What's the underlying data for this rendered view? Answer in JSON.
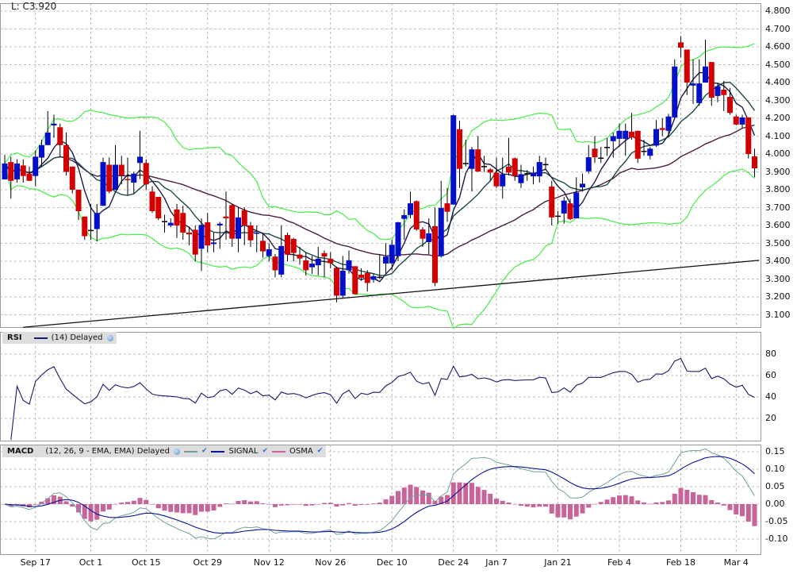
{
  "header": {
    "last_label": "L: C3.920"
  },
  "colors": {
    "up": "#0010c8",
    "down": "#d40000",
    "bands": "#44ee44",
    "ma_fast": "#1c1c48",
    "ma_mid": "#1e4a4a",
    "ma_slow": "#4a1e44",
    "rsi": "#1a1a6e",
    "macd": "#6fa0a0",
    "signal": "#0a1496",
    "osma": "#c8649a",
    "grid": "#aaaaaa"
  },
  "rsi_legend": {
    "title": "RSI",
    "params": "(14) Delayed"
  },
  "macd_legend": {
    "title": "MACD",
    "params": "(12, 26, 9 - EMA, EMA) Delayed",
    "signal": "SIGNAL",
    "osma": "OSMA"
  },
  "chart_data": {
    "type": "candlestick",
    "title": "",
    "candles": [
      [
        3.858,
        3.995,
        3.86,
        3.947
      ],
      [
        3.955,
        3.985,
        3.75,
        3.85
      ],
      [
        3.858,
        3.97,
        3.84,
        3.947
      ],
      [
        3.936,
        3.97,
        3.84,
        3.877
      ],
      [
        3.89,
        3.93,
        3.85,
        3.85
      ],
      [
        3.877,
        4.02,
        3.82,
        3.985
      ],
      [
        3.98,
        4.08,
        3.93,
        4.05
      ],
      [
        4.05,
        4.24,
        4.05,
        4.12
      ],
      [
        4.16,
        4.22,
        4.09,
        4.17
      ],
      [
        4.15,
        4.17,
        3.98,
        4.05
      ],
      [
        4.05,
        4.12,
        3.88,
        3.9
      ],
      [
        3.93,
        3.93,
        3.78,
        3.8
      ],
      [
        3.8,
        3.8,
        3.63,
        3.68
      ],
      [
        3.65,
        3.65,
        3.52,
        3.54
      ],
      [
        3.575,
        3.72,
        3.52,
        3.575
      ],
      [
        3.58,
        3.72,
        3.51,
        3.67
      ],
      [
        3.71,
        3.98,
        3.71,
        3.955
      ],
      [
        3.94,
        3.98,
        3.78,
        3.79
      ],
      [
        3.8,
        4.05,
        3.8,
        3.94
      ],
      [
        3.94,
        3.99,
        3.83,
        3.88
      ],
      [
        3.86,
        3.98,
        3.77,
        3.855
      ],
      [
        3.84,
        3.9,
        3.78,
        3.89
      ],
      [
        3.95,
        4.13,
        3.86,
        3.985
      ],
      [
        3.95,
        3.97,
        3.8,
        3.83
      ],
      [
        3.79,
        3.82,
        3.67,
        3.68
      ],
      [
        3.76,
        3.76,
        3.63,
        3.64
      ],
      [
        3.625,
        3.66,
        3.56,
        3.625
      ],
      [
        3.6,
        3.64,
        3.59,
        3.615
      ],
      [
        3.69,
        3.72,
        3.53,
        3.6
      ],
      [
        3.67,
        3.71,
        3.52,
        3.56
      ],
      [
        3.56,
        3.59,
        3.49,
        3.55
      ],
      [
        3.576,
        3.6,
        3.4,
        3.437
      ],
      [
        3.47,
        3.64,
        3.345,
        3.603
      ],
      [
        3.618,
        3.67,
        3.45,
        3.488
      ],
      [
        3.496,
        3.56,
        3.45,
        3.505
      ],
      [
        3.6,
        3.62,
        3.47,
        3.61
      ],
      [
        3.65,
        3.79,
        3.52,
        3.64
      ],
      [
        3.714,
        3.72,
        3.48,
        3.526
      ],
      [
        3.526,
        3.7,
        3.45,
        3.645
      ],
      [
        3.685,
        3.7,
        3.49,
        3.6
      ],
      [
        3.6,
        3.62,
        3.48,
        3.517
      ],
      [
        3.555,
        3.6,
        3.45,
        3.56
      ],
      [
        3.514,
        3.56,
        3.42,
        3.455
      ],
      [
        3.428,
        3.5,
        3.4,
        3.467
      ],
      [
        3.426,
        3.44,
        3.31,
        3.349
      ],
      [
        3.325,
        3.6,
        3.31,
        3.485
      ],
      [
        3.547,
        3.56,
        3.4,
        3.437
      ],
      [
        3.525,
        3.53,
        3.4,
        3.446
      ],
      [
        3.437,
        3.48,
        3.38,
        3.415
      ],
      [
        3.405,
        3.45,
        3.32,
        3.349
      ],
      [
        3.366,
        3.43,
        3.33,
        3.387
      ],
      [
        3.377,
        3.48,
        3.32,
        3.414
      ],
      [
        3.445,
        3.46,
        3.31,
        3.426
      ],
      [
        3.414,
        3.45,
        3.36,
        3.389
      ],
      [
        3.363,
        3.37,
        3.17,
        3.207
      ],
      [
        3.207,
        3.43,
        3.19,
        3.347
      ],
      [
        3.349,
        3.46,
        3.33,
        3.405
      ],
      [
        3.372,
        3.37,
        3.215,
        3.215
      ],
      [
        3.325,
        3.36,
        3.29,
        3.307
      ],
      [
        3.334,
        3.35,
        3.23,
        3.278
      ],
      [
        3.296,
        3.33,
        3.28,
        3.316
      ],
      [
        3.313,
        3.44,
        3.3,
        3.313
      ],
      [
        3.387,
        3.5,
        3.33,
        3.426
      ],
      [
        3.388,
        3.52,
        3.35,
        3.492
      ],
      [
        3.428,
        3.62,
        3.4,
        3.618
      ],
      [
        3.637,
        3.69,
        3.52,
        3.658
      ],
      [
        3.659,
        3.79,
        3.64,
        3.724
      ],
      [
        3.736,
        3.74,
        3.57,
        3.578
      ],
      [
        3.578,
        3.59,
        3.48,
        3.526
      ],
      [
        3.507,
        3.64,
        3.44,
        3.556
      ],
      [
        3.596,
        3.7,
        3.26,
        3.278
      ],
      [
        3.428,
        3.85,
        3.42,
        3.698
      ],
      [
        3.724,
        3.81,
        3.62,
        3.677
      ],
      [
        3.717,
        4.22,
        3.72,
        4.217
      ],
      [
        4.139,
        4.186,
        3.81,
        3.917
      ],
      [
        3.95,
        4.08,
        3.93,
        3.95
      ],
      [
        3.917,
        4.04,
        3.79,
        4.026
      ],
      [
        4.026,
        4.1,
        3.9,
        3.902
      ],
      [
        3.933,
        3.99,
        3.9,
        3.933
      ],
      [
        3.914,
        3.92,
        3.85,
        3.896
      ],
      [
        3.896,
        3.98,
        3.81,
        3.819
      ],
      [
        3.819,
        3.98,
        3.75,
        3.887
      ],
      [
        3.929,
        4.09,
        3.88,
        3.896
      ],
      [
        3.976,
        3.98,
        3.85,
        3.877
      ],
      [
        3.837,
        3.94,
        3.81,
        3.887
      ],
      [
        3.893,
        3.91,
        3.85,
        3.893
      ],
      [
        3.875,
        3.93,
        3.83,
        3.896
      ],
      [
        3.875,
        3.99,
        3.84,
        3.955
      ],
      [
        3.944,
        3.98,
        3.91,
        3.944
      ],
      [
        3.818,
        3.85,
        3.6,
        3.645
      ],
      [
        3.655,
        3.68,
        3.61,
        3.655
      ],
      [
        3.667,
        3.76,
        3.61,
        3.739
      ],
      [
        3.724,
        3.75,
        3.63,
        3.636
      ],
      [
        3.64,
        3.87,
        3.64,
        3.785
      ],
      [
        3.813,
        3.89,
        3.79,
        3.834
      ],
      [
        3.903,
        4.05,
        3.89,
        3.982
      ],
      [
        4.03,
        4.1,
        3.95,
        3.982
      ],
      [
        3.98,
        4.04,
        3.95,
        3.98
      ],
      [
        4.04,
        4.09,
        3.99,
        4.04
      ],
      [
        4.072,
        4.12,
        3.98,
        4.1
      ],
      [
        4.085,
        4.17,
        4.04,
        4.13
      ],
      [
        4.085,
        4.17,
        3.99,
        4.13
      ],
      [
        4.125,
        4.23,
        4.08,
        4.093
      ],
      [
        4.13,
        4.13,
        3.95,
        3.974
      ],
      [
        4.018,
        4.08,
        3.99,
        4.018
      ],
      [
        3.99,
        4.04,
        3.97,
        4.03
      ],
      [
        4.047,
        4.19,
        4.04,
        4.14
      ],
      [
        4.145,
        4.2,
        4.1,
        4.135
      ],
      [
        4.13,
        4.225,
        4.1,
        4.21
      ],
      [
        4.205,
        4.53,
        4.2,
        4.49
      ],
      [
        4.625,
        4.66,
        4.54,
        4.595
      ],
      [
        4.585,
        4.58,
        4.33,
        4.4
      ],
      [
        4.383,
        4.53,
        4.28,
        4.395
      ],
      [
        4.285,
        4.53,
        4.27,
        4.395
      ],
      [
        4.4,
        4.64,
        4.4,
        4.49
      ],
      [
        4.515,
        4.51,
        4.27,
        4.315
      ],
      [
        4.325,
        4.4,
        4.29,
        4.38
      ],
      [
        4.36,
        4.41,
        4.24,
        4.33
      ],
      [
        4.32,
        4.37,
        4.22,
        4.23
      ],
      [
        4.21,
        4.22,
        4.16,
        4.165
      ],
      [
        4.165,
        4.22,
        4.145,
        4.205
      ],
      [
        4.205,
        4.2,
        3.975,
        4.0
      ],
      [
        3.987,
        4.03,
        3.87,
        3.92
      ]
    ],
    "x_ticks": [
      {
        "label": "Sep 17",
        "index": 5
      },
      {
        "label": "Oct 1",
        "index": 14
      },
      {
        "label": "Oct 15",
        "index": 23
      },
      {
        "label": "Oct 29",
        "index": 33
      },
      {
        "label": "Nov 12",
        "index": 43
      },
      {
        "label": "Nov 26",
        "index": 53
      },
      {
        "label": "Dec 10",
        "index": 63
      },
      {
        "label": "Dec 24",
        "index": 73
      },
      {
        "label": "Jan 7",
        "index": 80
      },
      {
        "label": "Jan 21",
        "index": 90
      },
      {
        "label": "Feb 4",
        "index": 100
      },
      {
        "label": "Feb 18",
        "index": 110
      },
      {
        "label": "Mar 4",
        "index": 119
      }
    ],
    "price_axis": {
      "ylim": [
        3.03,
        4.86
      ],
      "ticks": [
        "4.800",
        "4.700",
        "4.600",
        "4.500",
        "4.400",
        "4.300",
        "4.200",
        "4.100",
        "4.000",
        "3.900",
        "3.800",
        "3.700",
        "3.600",
        "3.500",
        "3.400",
        "3.300",
        "3.200",
        "3.100"
      ]
    },
    "overlays": {
      "ma_periods": [
        5,
        10,
        30
      ],
      "bollinger": {
        "period": 20,
        "stddev": 2
      }
    },
    "trendline": {
      "start": {
        "index": 3,
        "value": 3.03
      },
      "end": {
        "index": 123,
        "value": 3.405
      }
    },
    "rsi": {
      "period": 14,
      "ylim": [
        0,
        100
      ],
      "ticks": [
        "80",
        "60",
        "40",
        "20"
      ]
    },
    "macd": {
      "fast": 12,
      "slow": 26,
      "signal": 9,
      "ylim": [
        -0.13,
        0.17
      ],
      "ticks": [
        "0.15",
        "0.10",
        "0.05",
        "0.00",
        "-0.05",
        "-0.10"
      ]
    }
  }
}
